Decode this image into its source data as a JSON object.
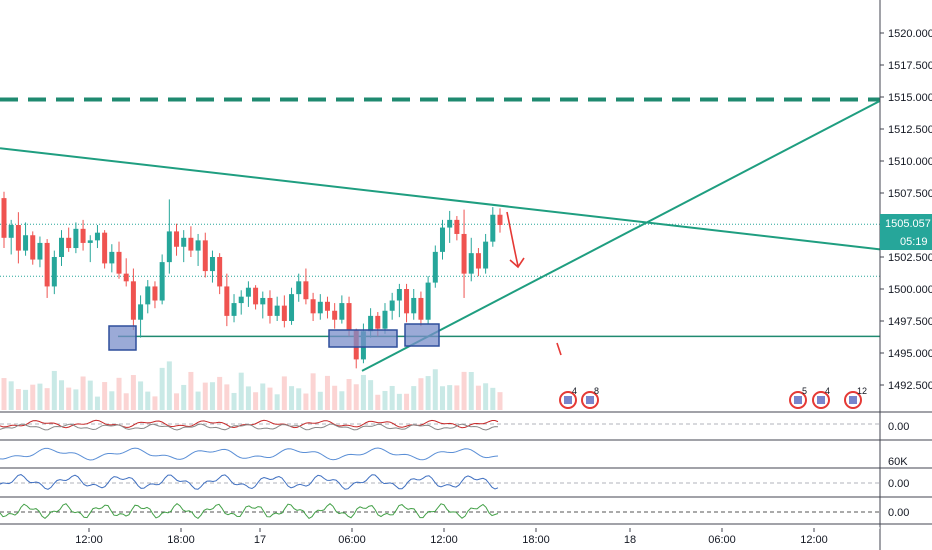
{
  "chart_data": {
    "type": "candlestick",
    "y_axis": {
      "range": [
        1490.0,
        1522.0
      ],
      "tick_labels": [
        "1520.000",
        "1517.500",
        "1515.000",
        "1512.500",
        "1510.000",
        "1507.500",
        "1505.000",
        "1502.500",
        "1500.000",
        "1497.500",
        "1495.000",
        "1492.500"
      ]
    },
    "time_axis": {
      "labels": [
        "12:00",
        "18:00",
        "17",
        "06:00",
        "12:00",
        "18:00",
        "18",
        "06:00",
        "12:00"
      ]
    },
    "price_tag": {
      "value": "1505.057",
      "countdown": "05:19",
      "color": "#26a69a"
    },
    "levels": {
      "resistance_dashed": 1514.8,
      "support": 1496.3,
      "dotted_current": 1505.057,
      "dotted_lower": 1501.0
    },
    "trendlines": [
      {
        "name": "descending",
        "start": [
          0,
          1511.0
        ],
        "end": [
          880,
          1503.1
        ]
      },
      {
        "name": "ascending",
        "start": [
          362,
          1493.6
        ],
        "end": [
          880,
          1514.7
        ]
      }
    ],
    "pane_labels": [
      "0.00",
      "60K",
      "0.00",
      "0.00"
    ],
    "event_badges": [
      {
        "x": 568,
        "count": "4"
      },
      {
        "x": 590,
        "count": "8"
      },
      {
        "x": 798,
        "count": "5"
      },
      {
        "x": 821,
        "count": "4"
      },
      {
        "x": 853,
        "count": "12"
      }
    ],
    "candles": [
      [
        1507.1,
        1507.6,
        1503.2,
        1504.0
      ],
      [
        1504.0,
        1505.4,
        1502.7,
        1505.0
      ],
      [
        1505.0,
        1506.0,
        1502.0,
        1503.0
      ],
      [
        1503.0,
        1505.2,
        1502.6,
        1504.2
      ],
      [
        1504.2,
        1504.5,
        1501.9,
        1502.3
      ],
      [
        1502.3,
        1504.1,
        1501.7,
        1503.6
      ],
      [
        1503.6,
        1503.9,
        1499.3,
        1500.2
      ],
      [
        1500.2,
        1503.0,
        1499.6,
        1502.5
      ],
      [
        1502.5,
        1504.6,
        1501.8,
        1504.0
      ],
      [
        1504.0,
        1504.8,
        1502.9,
        1503.2
      ],
      [
        1503.2,
        1505.2,
        1502.8,
        1504.7
      ],
      [
        1504.7,
        1505.4,
        1503.0,
        1503.6
      ],
      [
        1503.6,
        1504.2,
        1502.1,
        1503.8
      ],
      [
        1503.8,
        1505.0,
        1503.2,
        1504.4
      ],
      [
        1504.4,
        1504.6,
        1501.6,
        1502.0
      ],
      [
        1502.0,
        1503.5,
        1501.3,
        1502.9
      ],
      [
        1502.9,
        1503.7,
        1500.8,
        1501.2
      ],
      [
        1501.2,
        1502.4,
        1500.2,
        1500.6
      ],
      [
        1500.6,
        1501.6,
        1496.8,
        1497.6
      ],
      [
        1497.6,
        1499.5,
        1496.2,
        1498.8
      ],
      [
        1498.8,
        1500.7,
        1498.1,
        1500.2
      ],
      [
        1500.2,
        1500.6,
        1498.5,
        1499.1
      ],
      [
        1499.1,
        1502.7,
        1498.8,
        1502.1
      ],
      [
        1502.1,
        1507.0,
        1501.2,
        1504.5
      ],
      [
        1504.5,
        1505.1,
        1502.6,
        1503.3
      ],
      [
        1503.3,
        1504.6,
        1502.1,
        1504.0
      ],
      [
        1504.0,
        1504.9,
        1502.5,
        1503.0
      ],
      [
        1503.0,
        1504.3,
        1501.8,
        1503.8
      ],
      [
        1503.8,
        1504.4,
        1500.9,
        1501.4
      ],
      [
        1501.4,
        1503.0,
        1500.5,
        1502.5
      ],
      [
        1502.5,
        1502.8,
        1499.6,
        1500.2
      ],
      [
        1500.2,
        1501.2,
        1497.1,
        1497.9
      ],
      [
        1497.9,
        1499.6,
        1497.4,
        1498.9
      ],
      [
        1498.9,
        1499.9,
        1498.0,
        1499.4
      ],
      [
        1499.4,
        1500.6,
        1498.6,
        1500.1
      ],
      [
        1500.1,
        1500.3,
        1498.4,
        1498.8
      ],
      [
        1498.8,
        1499.8,
        1497.7,
        1499.3
      ],
      [
        1499.3,
        1499.9,
        1497.3,
        1497.9
      ],
      [
        1497.9,
        1499.4,
        1497.5,
        1498.7
      ],
      [
        1498.7,
        1499.5,
        1497.0,
        1497.5
      ],
      [
        1497.5,
        1500.1,
        1497.2,
        1499.6
      ],
      [
        1499.6,
        1501.2,
        1499.0,
        1500.6
      ],
      [
        1500.6,
        1501.6,
        1498.8,
        1499.2
      ],
      [
        1499.2,
        1499.7,
        1497.5,
        1498.1
      ],
      [
        1498.1,
        1499.6,
        1497.6,
        1499.0
      ],
      [
        1499.0,
        1499.4,
        1497.7,
        1498.3
      ],
      [
        1498.3,
        1498.9,
        1496.9,
        1497.6
      ],
      [
        1497.6,
        1499.5,
        1497.3,
        1498.9
      ],
      [
        1498.9,
        1499.4,
        1496.3,
        1496.8
      ],
      [
        1496.8,
        1496.9,
        1493.8,
        1494.5
      ],
      [
        1494.5,
        1497.3,
        1494.2,
        1496.7
      ],
      [
        1496.7,
        1498.5,
        1496.2,
        1497.9
      ],
      [
        1497.9,
        1498.2,
        1496.3,
        1496.9
      ],
      [
        1496.9,
        1498.9,
        1496.5,
        1498.3
      ],
      [
        1498.3,
        1499.7,
        1497.6,
        1499.1
      ],
      [
        1499.1,
        1500.4,
        1497.8,
        1500.0
      ],
      [
        1500.0,
        1500.4,
        1497.4,
        1498.1
      ],
      [
        1498.1,
        1500.0,
        1497.6,
        1499.3
      ],
      [
        1499.3,
        1499.8,
        1497.1,
        1497.6
      ],
      [
        1497.6,
        1501.0,
        1497.3,
        1500.5
      ],
      [
        1500.5,
        1503.4,
        1500.1,
        1502.9
      ],
      [
        1502.9,
        1505.4,
        1502.3,
        1504.8
      ],
      [
        1504.8,
        1506.1,
        1503.6,
        1505.4
      ],
      [
        1505.4,
        1505.7,
        1503.8,
        1504.3
      ],
      [
        1504.3,
        1506.2,
        1499.3,
        1501.2
      ],
      [
        1501.2,
        1504.0,
        1500.6,
        1502.8
      ],
      [
        1502.8,
        1503.2,
        1501.0,
        1501.6
      ],
      [
        1501.6,
        1504.3,
        1501.2,
        1503.7
      ],
      [
        1503.7,
        1506.4,
        1503.3,
        1505.8
      ],
      [
        1505.8,
        1506.3,
        1504.4,
        1505.0
      ]
    ]
  }
}
